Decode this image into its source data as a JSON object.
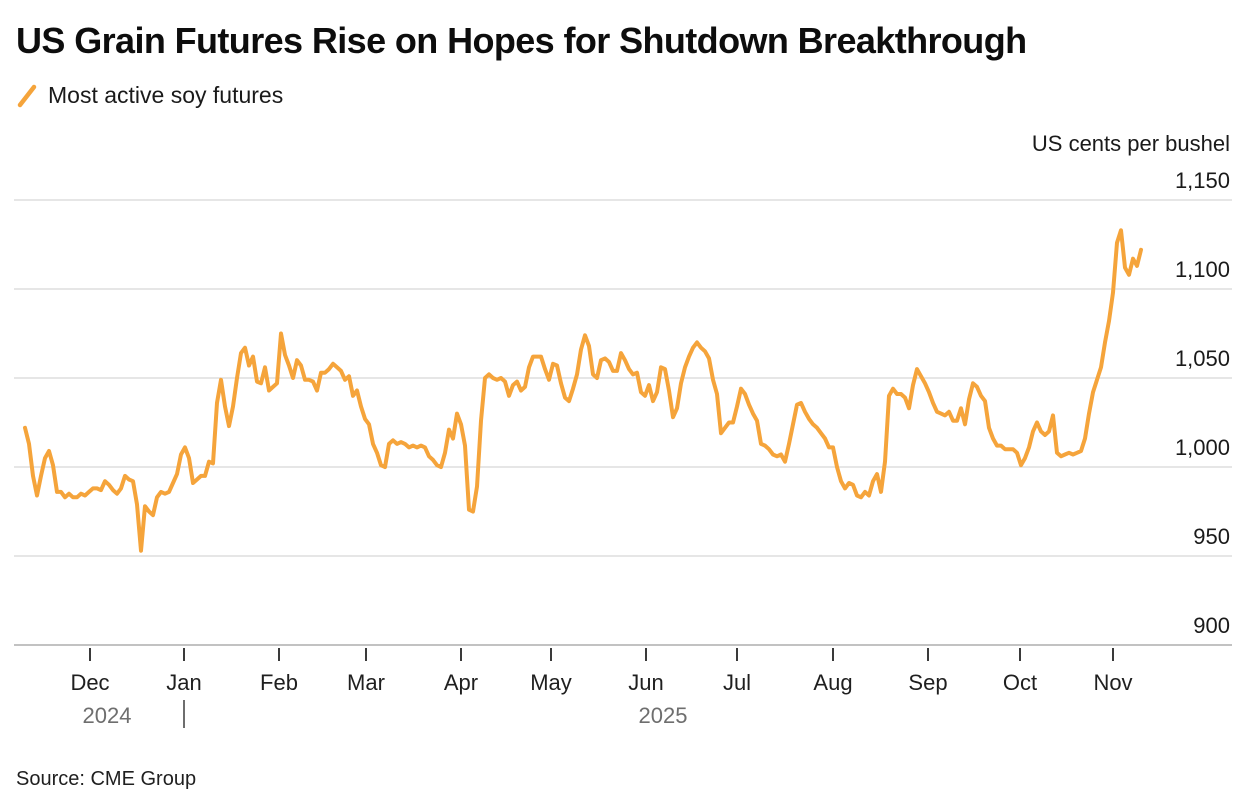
{
  "header": {
    "title": "US Grain Futures Rise on Hopes for Shutdown Breakthrough",
    "legend_label": "Most active soy futures"
  },
  "axes": {
    "unit_label": "US cents per bushel",
    "y_tick_labels": [
      "1,150",
      "1,100",
      "1,050",
      "1,000",
      "950",
      "900"
    ],
    "months": [
      "Dec",
      "Jan",
      "Feb",
      "Mar",
      "Apr",
      "May",
      "Jun",
      "Jul",
      "Aug",
      "Sep",
      "Oct",
      "Nov"
    ],
    "year_left": "2024",
    "year_right": "2025"
  },
  "source": "Source: CME Group",
  "colors": {
    "line": "#F5A43B",
    "grid": "#D8D8D8",
    "baseline": "#C2C2C2",
    "tick": "#3A3A3A",
    "month_label": "#1F1F1F",
    "year_label": "#6E6E6E",
    "y_label": "#1A1A1A"
  },
  "chart_data": {
    "type": "line",
    "title": "US Grain Futures Rise on Hopes for Shutdown Breakthrough",
    "series_name": "Most active soy futures",
    "unit": "US cents per bushel",
    "ylabel": "US cents per bushel",
    "ylim": [
      900,
      1150
    ],
    "y_ticks": [
      1150,
      1100,
      1050,
      1000,
      950,
      900
    ],
    "grid": "horizontal",
    "legend_position": "top-left",
    "x_axis_months": [
      "Dec 2024",
      "Jan 2025",
      "Feb",
      "Mar",
      "Apr",
      "May",
      "Jun",
      "Jul",
      "Aug",
      "Sep",
      "Oct",
      "Nov 2025"
    ],
    "x_start": "2024-11-10",
    "x_end": "2025-11-08",
    "sampling": "uniform, 280 points, approx. 1.3 days per point",
    "values": [
      1022,
      1013,
      995,
      984,
      995,
      1005,
      1009,
      1001,
      986,
      986,
      983,
      985,
      983,
      983,
      985,
      984,
      986,
      988,
      988,
      987,
      992,
      990,
      987,
      985,
      988,
      995,
      993,
      992,
      979,
      953,
      978,
      975,
      973,
      983,
      986,
      985,
      986,
      991,
      996,
      1007,
      1011,
      1005,
      991,
      993,
      995,
      995,
      1003,
      1002,
      1036,
      1049,
      1034,
      1023,
      1034,
      1050,
      1064,
      1067,
      1057,
      1062,
      1048,
      1047,
      1056,
      1043,
      1045,
      1047,
      1075,
      1063,
      1057,
      1050,
      1060,
      1057,
      1049,
      1049,
      1048,
      1043,
      1053,
      1053,
      1055,
      1058,
      1056,
      1054,
      1049,
      1051,
      1040,
      1043,
      1034,
      1027,
      1024,
      1013,
      1008,
      1001,
      1000,
      1013,
      1015,
      1013,
      1014,
      1013,
      1011,
      1012,
      1011,
      1012,
      1011,
      1006,
      1004,
      1001,
      1000,
      1008,
      1021,
      1016,
      1030,
      1024,
      1012,
      976,
      975,
      989,
      1026,
      1050,
      1052,
      1050,
      1049,
      1050,
      1048,
      1040,
      1046,
      1048,
      1043,
      1045,
      1056,
      1062,
      1062,
      1062,
      1055,
      1049,
      1058,
      1057,
      1047,
      1039,
      1037,
      1044,
      1052,
      1066,
      1074,
      1068,
      1052,
      1050,
      1060,
      1061,
      1059,
      1054,
      1054,
      1064,
      1060,
      1055,
      1052,
      1053,
      1042,
      1040,
      1046,
      1037,
      1042,
      1056,
      1055,
      1043,
      1028,
      1033,
      1047,
      1056,
      1062,
      1067,
      1070,
      1067,
      1065,
      1061,
      1049,
      1041,
      1019,
      1022,
      1025,
      1025,
      1034,
      1044,
      1041,
      1035,
      1030,
      1026,
      1013,
      1012,
      1010,
      1007,
      1006,
      1007,
      1003,
      1013,
      1024,
      1035,
      1036,
      1031,
      1027,
      1024,
      1022,
      1019,
      1016,
      1011,
      1011,
      1000,
      992,
      988,
      991,
      990,
      984,
      983,
      986,
      984,
      992,
      996,
      986,
      1003,
      1040,
      1044,
      1041,
      1041,
      1039,
      1033,
      1046,
      1055,
      1051,
      1047,
      1042,
      1036,
      1031,
      1030,
      1029,
      1031,
      1026,
      1026,
      1033,
      1024,
      1038,
      1047,
      1045,
      1040,
      1037,
      1022,
      1016,
      1012,
      1012,
      1010,
      1010,
      1010,
      1008,
      1001,
      1005,
      1011,
      1020,
      1025,
      1020,
      1018,
      1020,
      1029,
      1008,
      1006,
      1007,
      1008,
      1007,
      1008,
      1009,
      1016,
      1030,
      1042,
      1049,
      1056,
      1070,
      1082,
      1098,
      1126,
      1133,
      1112,
      1108,
      1117,
      1113,
      1122
    ]
  }
}
